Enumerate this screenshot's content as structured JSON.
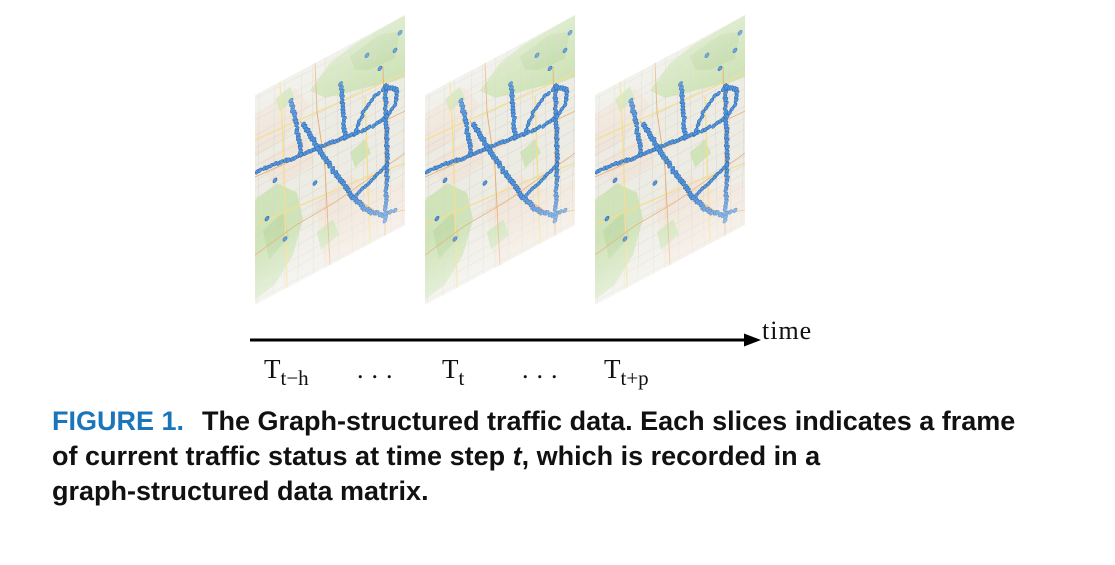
{
  "timeline": {
    "axis_label": "time",
    "ellipsis": "...",
    "labels": [
      {
        "main": "T",
        "sub": "t−h"
      },
      {
        "main": "T",
        "sub": "t"
      },
      {
        "main": "T",
        "sub": "t+p"
      }
    ]
  },
  "caption": {
    "figure_label": "FIGURE 1.",
    "line1": "The Graph-structured traffic data. Each slices indicates a frame",
    "line2_before": "of current traffic status at time step ",
    "line2_var": "t",
    "line2_after": ", which is recorded in a",
    "line3": "graph-structured data matrix."
  },
  "colors": {
    "figure_label": "#1b75bb",
    "map_background": "#ecebe3",
    "park": "#cde3b5",
    "park_dark": "#b8d69c",
    "urban_tint": "#f1dfd0",
    "street": "#d8d1c6",
    "major_road": "#f1dc8e",
    "highway": "#e8ab6c",
    "sensor_fill": "#4a8fdc",
    "sensor_stroke": "#1f5c9f"
  }
}
